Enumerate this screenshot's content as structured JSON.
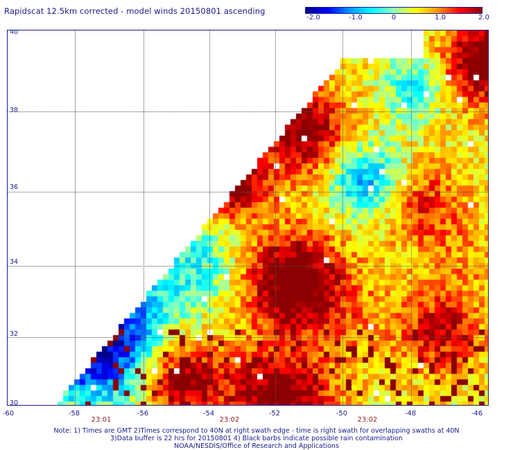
{
  "title": "Rapidscat 12.5km corrected - model winds 20150801 ascending",
  "colorbar": {
    "ticks": [
      "-2.0",
      "-1.0",
      "0",
      "1.0",
      "2.0"
    ],
    "range": [
      -2.0,
      2.0
    ],
    "colors": [
      "#00008b",
      "#0000ff",
      "#0096ff",
      "#00ffff",
      "#96ffb4",
      "#ffff00",
      "#ff9600",
      "#ff0000",
      "#8b0000"
    ]
  },
  "axes": {
    "x_labels": [
      "-60",
      "-58",
      "-56",
      "-54",
      "-52",
      "-50",
      "-48",
      "-46"
    ],
    "y_labels": [
      "40",
      "38",
      "36",
      "34",
      "32",
      "30"
    ],
    "lon_range": [
      -60,
      -45.3
    ],
    "lat_range": [
      30,
      40
    ]
  },
  "times": [
    "23:01",
    "23:02",
    "23:02"
  ],
  "notes": [
    "Note: 1) Times are GMT 2)Times correspond to 40N at right swath edge - time is right swath for overlapping swaths at 40N",
    "3)Data buffer is 22 hrs for 20150801 4) Black barbs indicate possible rain contamination",
    "NOAA/NESDIS/Office of Research and Applications"
  ]
}
